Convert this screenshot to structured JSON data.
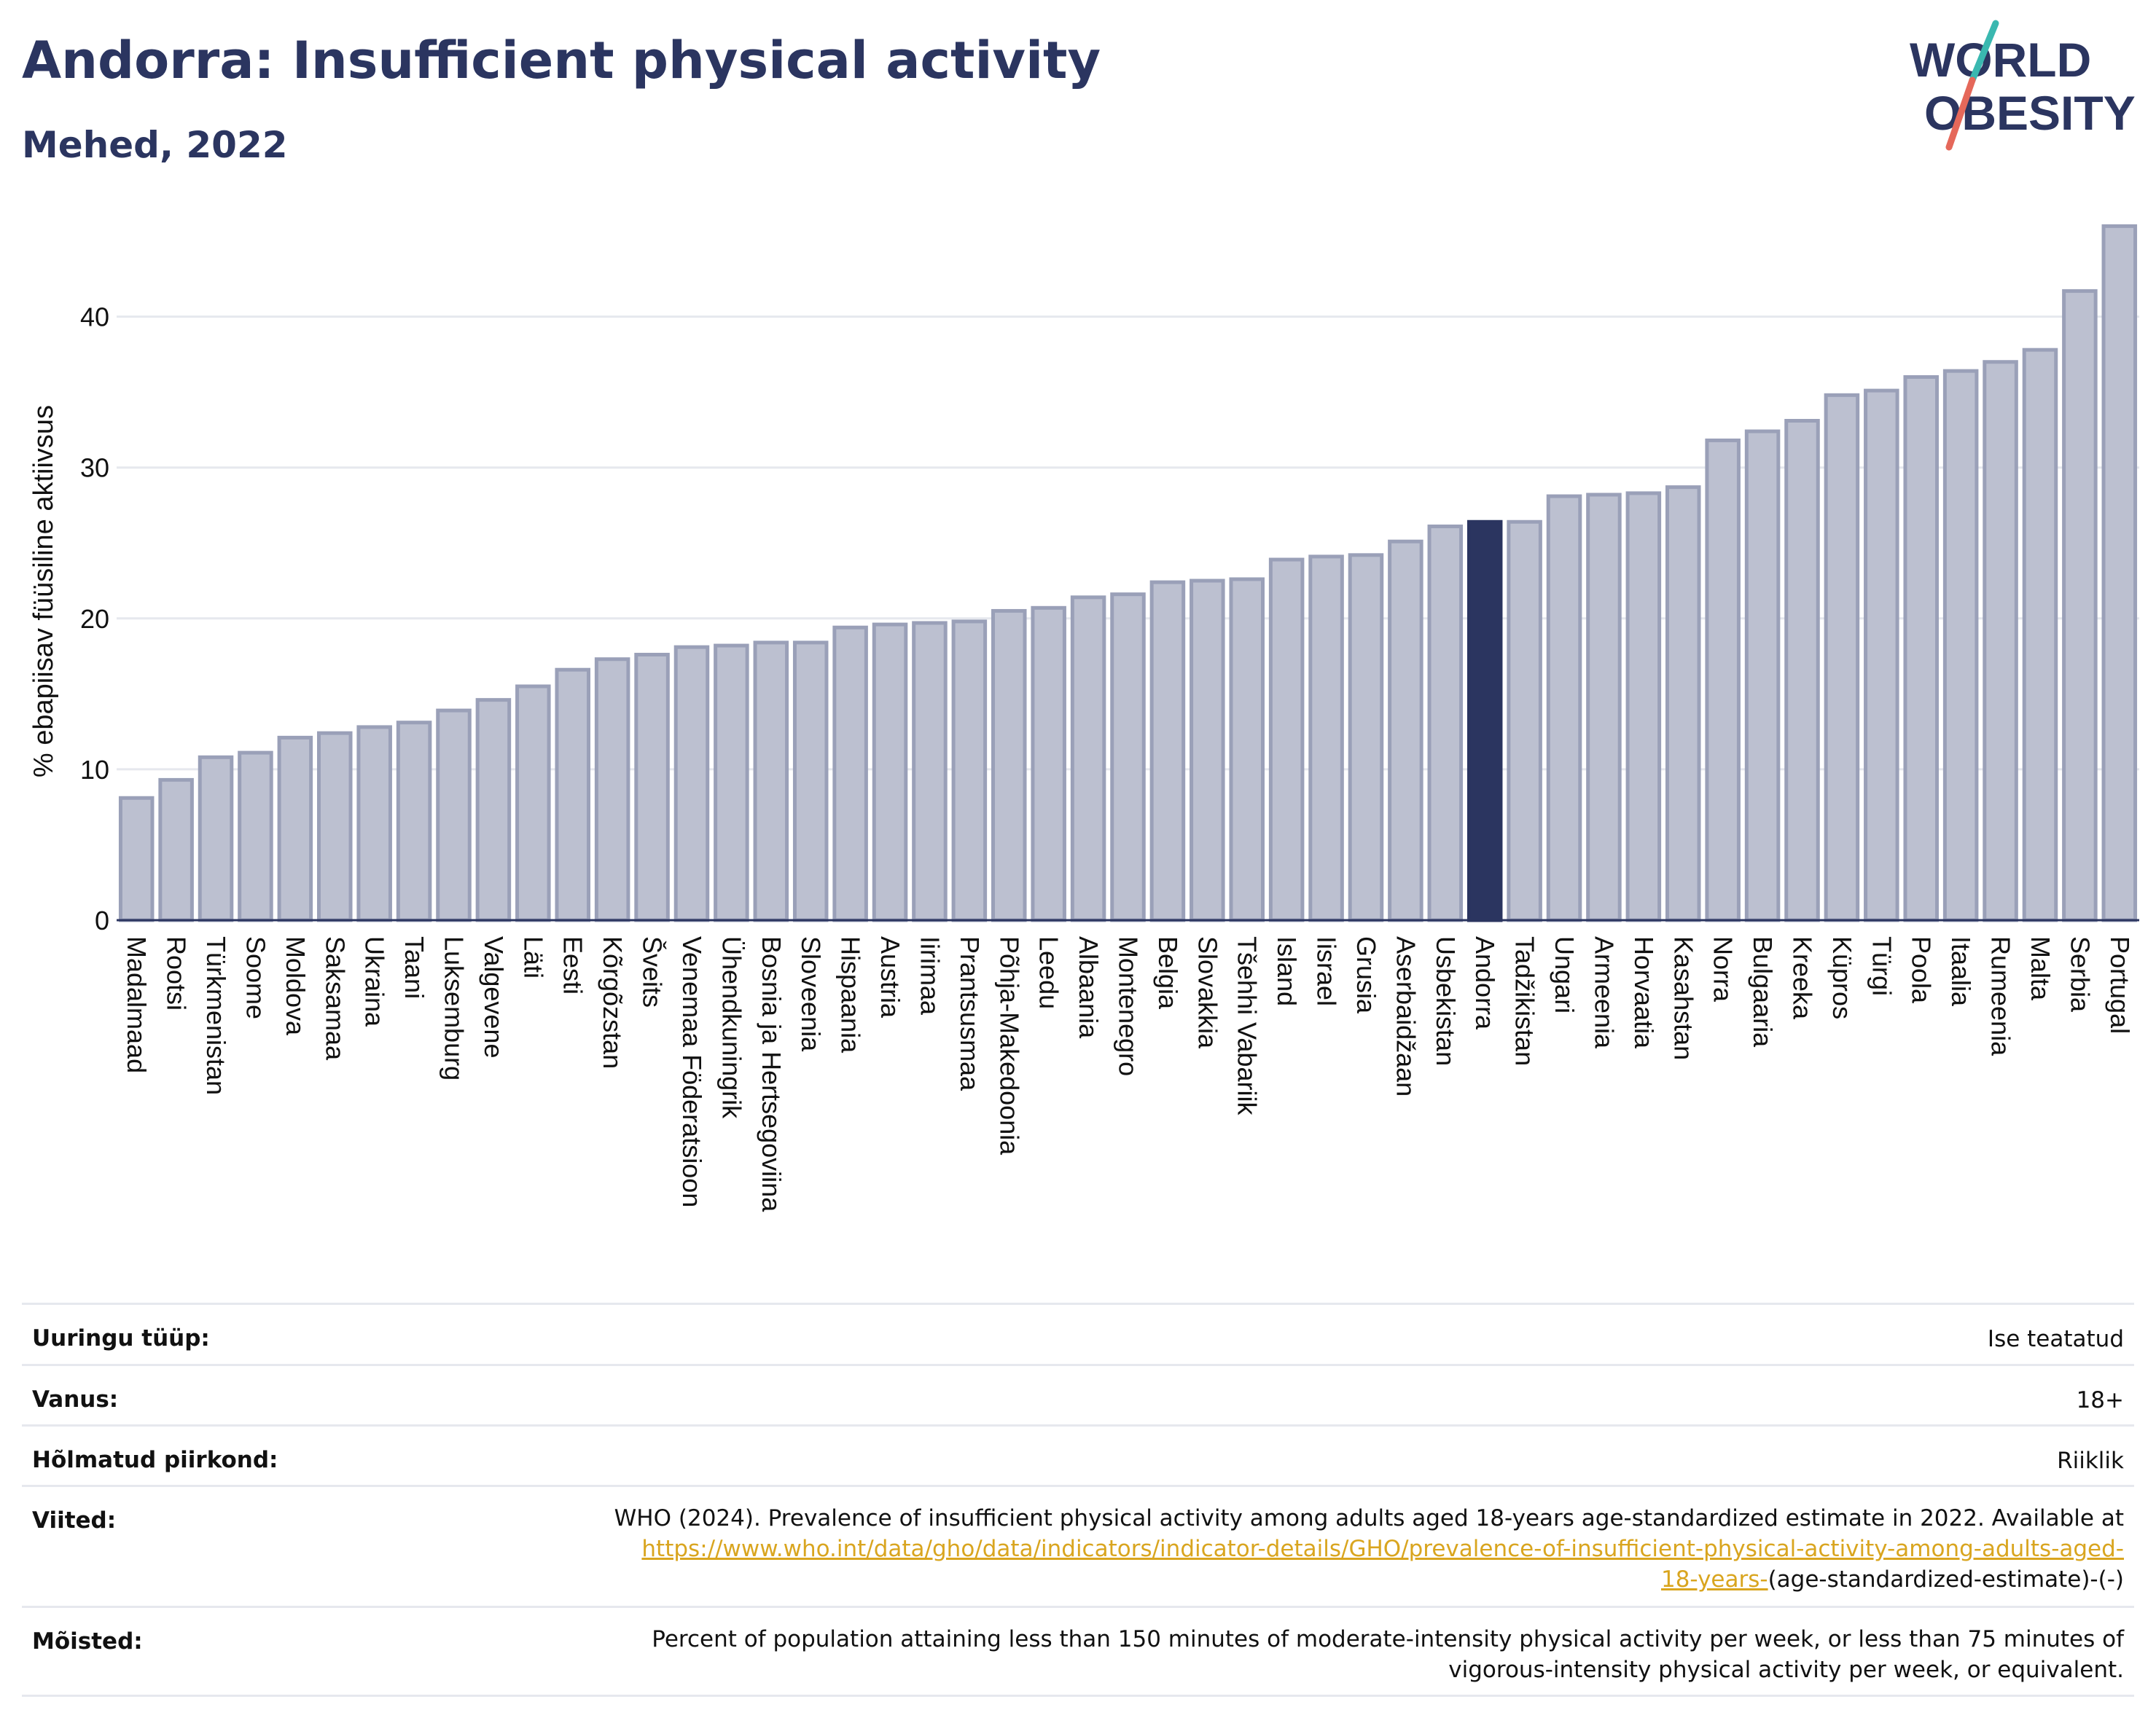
{
  "header": {
    "title": "Andorra: Insufficient physical activity",
    "subtitle": "Mehed, 2022"
  },
  "logo": {
    "line1": "WORLD",
    "line2": "OBESITY"
  },
  "colors": {
    "bar_fill": "#bcc0d0",
    "bar_stroke": "#9aa0b8",
    "highlight": "#2b3560",
    "title": "#2b3560",
    "link": "#d9a51f",
    "logo_slash_top": "#3ab8b0",
    "logo_slash_bottom": "#e5685a"
  },
  "chart_data": {
    "type": "bar",
    "title": "Andorra: Insufficient physical activity",
    "subtitle": "Mehed, 2022",
    "xlabel": "",
    "ylabel": "% ebapiisav füüsiline aktiivsus",
    "ylim": [
      0,
      46.5
    ],
    "yticks": [
      0,
      10,
      20,
      30,
      40
    ],
    "grid": true,
    "highlight": "Andorra",
    "categories": [
      "Madalmaad",
      "Rootsi",
      "Türkmenistan",
      "Soome",
      "Moldova",
      "Saksamaa",
      "Ukraina",
      "Taani",
      "Luksemburg",
      "Valgevene",
      "Läti",
      "Eesti",
      "Kõrgõzstan",
      "Šveits",
      "Venemaa Föderatsioon",
      "Ühendkuningrik",
      "Bosnia ja Hertsegoviina",
      "Sloveenia",
      "Hispaania",
      "Austria",
      "Iirimaa",
      "Prantsusmaa",
      "Põhja-Makedoonia",
      "Leedu",
      "Albaania",
      "Montenegro",
      "Belgia",
      "Slovakkia",
      "Tšehhi Vabariik",
      "Island",
      "Iisrael",
      "Grusia",
      "Aserbaidžaan",
      "Usbekistan",
      "Andorra",
      "Tadžikistan",
      "Ungari",
      "Armeenia",
      "Horvaatia",
      "Kasahstan",
      "Norra",
      "Bulgaaria",
      "Kreeka",
      "Küpros",
      "Türgi",
      "Poola",
      "Itaalia",
      "Rumeenia",
      "Malta",
      "Serbia",
      "Portugal"
    ],
    "values": [
      8.1,
      9.3,
      10.8,
      11.1,
      12.1,
      12.4,
      12.8,
      13.1,
      13.9,
      14.6,
      15.5,
      16.6,
      17.3,
      17.6,
      18.1,
      18.2,
      18.4,
      18.4,
      19.4,
      19.6,
      19.7,
      19.8,
      20.5,
      20.7,
      21.4,
      21.6,
      22.4,
      22.5,
      22.6,
      23.9,
      24.1,
      24.2,
      25.1,
      26.1,
      26.4,
      26.4,
      28.1,
      28.2,
      28.3,
      28.7,
      31.8,
      32.4,
      33.1,
      34.8,
      35.1,
      36.0,
      36.4,
      37.0,
      37.8,
      41.7,
      46.0
    ]
  },
  "meta": {
    "rows": [
      {
        "label": "Uuringu tüüp:",
        "value": "Ise teatatud"
      },
      {
        "label": "Vanus:",
        "value": "18+"
      },
      {
        "label": "Hõlmatud piirkond:",
        "value": "Riiklik"
      }
    ],
    "references": {
      "label": "Viited:",
      "text": "WHO (2024). Prevalence of insufficient physical activity among adults aged 18-years age-standardized estimate in 2022. Available at",
      "link_line1": "https://www.who.int/data/gho/data/indicators/indicator-details/GHO/prevalence-of-insufficient-physical-activity-among-adults-aged-",
      "link_line2": "18-years-",
      "suffix": "(age-standardized-estimate)-(-)"
    },
    "definitions": {
      "label": "Mõisted:",
      "line1": "Percent of population attaining less than 150 minutes of moderate-intensity physical activity per week, or less than 75 minutes of",
      "line2": "vigorous-intensity physical activity per week, or equivalent."
    }
  }
}
